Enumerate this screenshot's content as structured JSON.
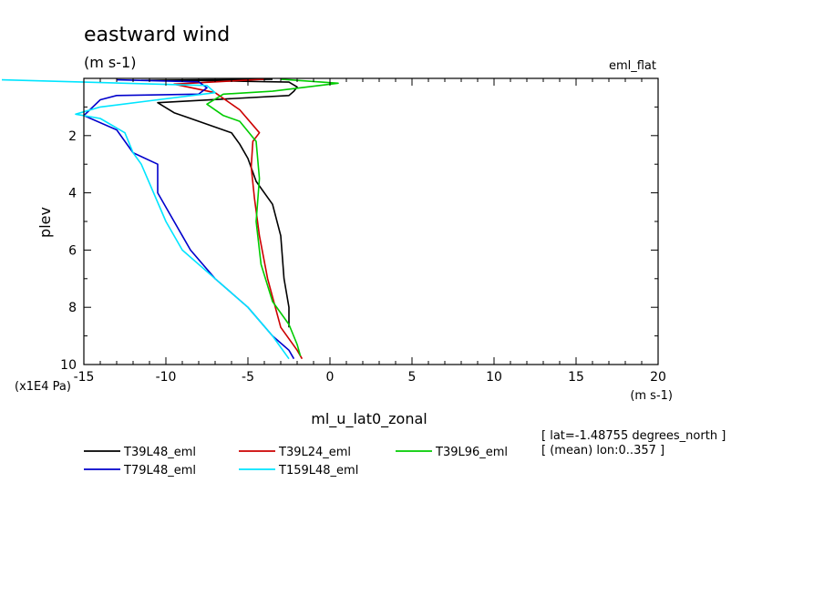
{
  "chart_data": {
    "type": "line",
    "title": "eastward wind",
    "units_label": "(m s-1)",
    "top_right_label": "eml_flat",
    "xlabel": "ml_u_lat0_zonal",
    "x_units": "(m s-1)",
    "ylabel": "plev",
    "y_units": "(x1E4 Pa)",
    "xlim": [
      -15,
      20
    ],
    "ylim": [
      10,
      0
    ],
    "y_inverted": true,
    "x_ticks": [
      "-15",
      "-10",
      "-5",
      "0",
      "5",
      "10",
      "15",
      "20"
    ],
    "y_ticks": [
      "2",
      "4",
      "6",
      "8",
      "10"
    ],
    "info_lines": [
      "[ lat=-1.48755 degrees_north ]",
      "[ (mean) lon:0..357 ]"
    ],
    "legend_placement": "bottom",
    "series": [
      {
        "name": "T39L48_eml",
        "color": "#000000",
        "points": [
          [
            -3.5,
            0.03
          ],
          [
            -11.5,
            0.07
          ],
          [
            -8.5,
            0.07
          ],
          [
            -2.5,
            0.13
          ],
          [
            -2.0,
            0.3
          ],
          [
            -2.2,
            0.45
          ],
          [
            -2.5,
            0.6
          ],
          [
            -10.5,
            0.85
          ],
          [
            -9.5,
            1.2
          ],
          [
            -8.0,
            1.5
          ],
          [
            -6.0,
            1.9
          ],
          [
            -5.5,
            2.3
          ],
          [
            -5.0,
            2.8
          ],
          [
            -4.5,
            3.6
          ],
          [
            -3.5,
            4.4
          ],
          [
            -3.0,
            5.5
          ],
          [
            -2.8,
            7.0
          ],
          [
            -2.5,
            8.0
          ],
          [
            -2.5,
            8.7
          ]
        ]
      },
      {
        "name": "T39L24_eml",
        "color": "#cc0000",
        "points": [
          [
            -4.0,
            0.03
          ],
          [
            -9.5,
            0.2
          ],
          [
            -7.0,
            0.5
          ],
          [
            -5.5,
            1.1
          ],
          [
            -4.3,
            1.9
          ],
          [
            -4.7,
            2.2
          ],
          [
            -4.8,
            3.1
          ],
          [
            -4.6,
            4.2
          ],
          [
            -4.3,
            5.5
          ],
          [
            -3.8,
            7.0
          ],
          [
            -3.0,
            8.7
          ],
          [
            -2.0,
            9.5
          ],
          [
            -1.7,
            9.8
          ]
        ]
      },
      {
        "name": "T39L96_eml",
        "color": "#00cc00",
        "points": [
          [
            -3.0,
            0.03
          ],
          [
            0.5,
            0.17
          ],
          [
            -3.5,
            0.45
          ],
          [
            -6.5,
            0.55
          ],
          [
            -7.5,
            0.9
          ],
          [
            -6.5,
            1.3
          ],
          [
            -5.5,
            1.5
          ],
          [
            -4.5,
            2.2
          ],
          [
            -4.3,
            3.5
          ],
          [
            -4.5,
            5.0
          ],
          [
            -4.2,
            6.5
          ],
          [
            -3.5,
            7.8
          ],
          [
            -2.5,
            8.6
          ],
          [
            -2.0,
            9.3
          ],
          [
            -1.8,
            9.7
          ]
        ]
      },
      {
        "name": "T79L48_eml",
        "color": "#0000cc",
        "points": [
          [
            -13.0,
            0.05
          ],
          [
            -8.0,
            0.12
          ],
          [
            -7.5,
            0.33
          ],
          [
            -8.0,
            0.55
          ],
          [
            -13.0,
            0.6
          ],
          [
            -14.0,
            0.75
          ],
          [
            -15.0,
            1.3
          ],
          [
            -13.0,
            1.8
          ],
          [
            -12.0,
            2.6
          ],
          [
            -10.5,
            3.0
          ],
          [
            -10.5,
            4.0
          ],
          [
            -9.0,
            5.5
          ],
          [
            -8.5,
            6.0
          ],
          [
            -7.0,
            7.0
          ],
          [
            -5.0,
            8.0
          ],
          [
            -3.5,
            9.0
          ],
          [
            -2.5,
            9.5
          ],
          [
            -2.2,
            9.8
          ]
        ]
      },
      {
        "name": "T159L48_eml",
        "color": "#00e5ff",
        "points": [
          [
            -20.0,
            0.05
          ],
          [
            -7.5,
            0.25
          ],
          [
            -7.0,
            0.5
          ],
          [
            -10.5,
            0.75
          ],
          [
            -14.0,
            1.0
          ],
          [
            -15.5,
            1.25
          ],
          [
            -14.0,
            1.4
          ],
          [
            -12.5,
            1.9
          ],
          [
            -12.0,
            2.6
          ],
          [
            -11.5,
            3.0
          ],
          [
            -10.0,
            5.0
          ],
          [
            -9.0,
            6.0
          ],
          [
            -7.0,
            7.0
          ],
          [
            -5.0,
            8.0
          ],
          [
            -3.5,
            9.0
          ],
          [
            -2.5,
            9.8
          ]
        ]
      }
    ]
  }
}
